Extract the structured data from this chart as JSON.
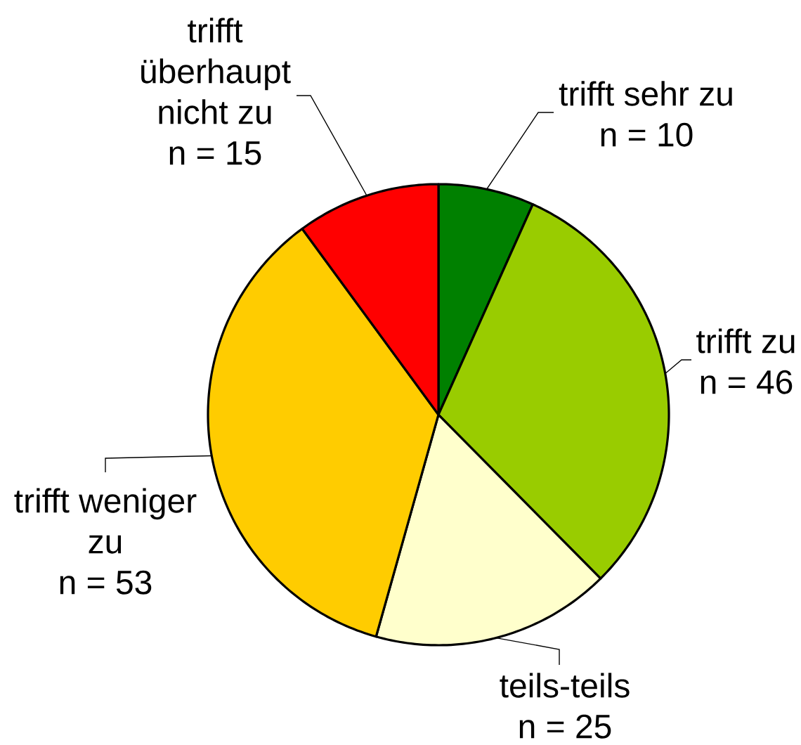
{
  "chart_data": {
    "type": "pie",
    "categories": [
      "trifft sehr zu",
      "trifft zu",
      "teils-teils",
      "trifft weniger zu",
      "trifft überhaupt nicht zu"
    ],
    "values": [
      10,
      46,
      25,
      53,
      15
    ],
    "value_labels": [
      "n = 10",
      "n = 46",
      "n = 25",
      "n = 53",
      "n = 15"
    ],
    "colors": [
      "#008000",
      "#99cc00",
      "#ffffcc",
      "#ffcc00",
      "#ff0000"
    ]
  }
}
